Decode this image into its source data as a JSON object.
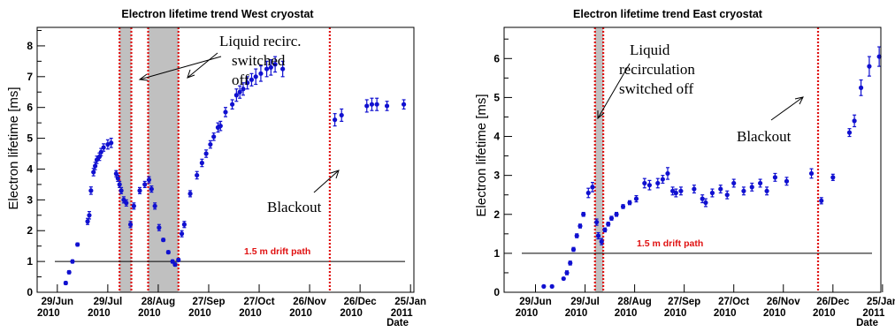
{
  "chart_data": [
    {
      "type": "scatter",
      "title": "Electron lifetime trend West cryostat",
      "ylabel": "Electron lifetime [ms]",
      "xlabel": "Date",
      "ylim": [
        0,
        8.6
      ],
      "yticks": [
        0,
        1,
        2,
        3,
        4,
        5,
        6,
        7,
        8
      ],
      "x_ticks": [
        {
          "day": 0,
          "line1": "29/Jun",
          "line2": "2010"
        },
        {
          "day": 30,
          "line1": "29/Jul",
          "line2": "2010"
        },
        {
          "day": 60,
          "line1": "28/Aug",
          "line2": "2010"
        },
        {
          "day": 90,
          "line1": "27/Sep",
          "line2": "2010"
        },
        {
          "day": 120,
          "line1": "27/Oct",
          "line2": "2010"
        },
        {
          "day": 150,
          "line1": "26/Nov",
          "line2": "2010"
        },
        {
          "day": 180,
          "line1": "26/Dec",
          "line2": "2010"
        },
        {
          "day": 210,
          "line1": "25/Jan",
          "line2": "2011"
        }
      ],
      "xlim": [
        -12,
        212
      ],
      "reference_line": {
        "y": 1.0,
        "label": "1.5 m drift path"
      },
      "shaded_regions": [
        [
          37,
          44
        ],
        [
          54,
          72
        ]
      ],
      "event_lines": [
        162
      ],
      "points": [
        {
          "x": 5,
          "y": 0.3,
          "err": 0.05
        },
        {
          "x": 7,
          "y": 0.65,
          "err": 0.05
        },
        {
          "x": 9,
          "y": 1.0,
          "err": 0.05
        },
        {
          "x": 12,
          "y": 1.55,
          "err": 0.05
        },
        {
          "x": 18,
          "y": 2.3,
          "err": 0.1
        },
        {
          "x": 19,
          "y": 2.5,
          "err": 0.12
        },
        {
          "x": 20,
          "y": 3.3,
          "err": 0.12
        },
        {
          "x": 21.5,
          "y": 3.9,
          "err": 0.12
        },
        {
          "x": 22.5,
          "y": 4.1,
          "err": 0.12
        },
        {
          "x": 23.5,
          "y": 4.3,
          "err": 0.12
        },
        {
          "x": 25,
          "y": 4.4,
          "err": 0.12
        },
        {
          "x": 26,
          "y": 4.55,
          "err": 0.12
        },
        {
          "x": 27.5,
          "y": 4.7,
          "err": 0.12
        },
        {
          "x": 30,
          "y": 4.8,
          "err": 0.15
        },
        {
          "x": 32,
          "y": 4.85,
          "err": 0.15
        },
        {
          "x": 35,
          "y": 3.85,
          "err": 0.1
        },
        {
          "x": 36,
          "y": 3.7,
          "err": 0.1
        },
        {
          "x": 37,
          "y": 3.5,
          "err": 0.1
        },
        {
          "x": 38,
          "y": 3.3,
          "err": 0.1
        },
        {
          "x": 39.5,
          "y": 3.0,
          "err": 0.1
        },
        {
          "x": 41,
          "y": 2.9,
          "err": 0.1
        },
        {
          "x": 43.5,
          "y": 2.2,
          "err": 0.1
        },
        {
          "x": 45.5,
          "y": 2.8,
          "err": 0.1
        },
        {
          "x": 49,
          "y": 3.3,
          "err": 0.1
        },
        {
          "x": 52,
          "y": 3.5,
          "err": 0.1
        },
        {
          "x": 54.5,
          "y": 3.65,
          "err": 0.1
        },
        {
          "x": 56,
          "y": 3.35,
          "err": 0.1
        },
        {
          "x": 58,
          "y": 2.8,
          "err": 0.1
        },
        {
          "x": 60.5,
          "y": 2.1,
          "err": 0.1
        },
        {
          "x": 63,
          "y": 1.7,
          "err": 0.05
        },
        {
          "x": 66,
          "y": 1.3,
          "err": 0.05
        },
        {
          "x": 68.5,
          "y": 1.0,
          "err": 0.05
        },
        {
          "x": 70,
          "y": 0.9,
          "err": 0.05
        },
        {
          "x": 72,
          "y": 1.05,
          "err": 0.05
        },
        {
          "x": 74,
          "y": 1.9,
          "err": 0.1
        },
        {
          "x": 75.5,
          "y": 2.2,
          "err": 0.1
        },
        {
          "x": 79,
          "y": 3.2,
          "err": 0.1
        },
        {
          "x": 83,
          "y": 3.8,
          "err": 0.12
        },
        {
          "x": 86,
          "y": 4.2,
          "err": 0.12
        },
        {
          "x": 88.5,
          "y": 4.5,
          "err": 0.12
        },
        {
          "x": 91,
          "y": 4.8,
          "err": 0.12
        },
        {
          "x": 93,
          "y": 5.05,
          "err": 0.12
        },
        {
          "x": 95.5,
          "y": 5.35,
          "err": 0.15
        },
        {
          "x": 97,
          "y": 5.4,
          "err": 0.15
        },
        {
          "x": 100,
          "y": 5.85,
          "err": 0.15
        },
        {
          "x": 104,
          "y": 6.1,
          "err": 0.15
        },
        {
          "x": 106.5,
          "y": 6.4,
          "err": 0.2
        },
        {
          "x": 108.5,
          "y": 6.5,
          "err": 0.2
        },
        {
          "x": 110.5,
          "y": 6.6,
          "err": 0.2
        },
        {
          "x": 113,
          "y": 6.8,
          "err": 0.2
        },
        {
          "x": 115.5,
          "y": 6.9,
          "err": 0.2
        },
        {
          "x": 118,
          "y": 7.0,
          "err": 0.25
        },
        {
          "x": 121,
          "y": 7.1,
          "err": 0.25
        },
        {
          "x": 124.5,
          "y": 7.25,
          "err": 0.25
        },
        {
          "x": 127,
          "y": 7.3,
          "err": 0.25
        },
        {
          "x": 129.5,
          "y": 7.4,
          "err": 0.25
        },
        {
          "x": 134,
          "y": 7.25,
          "err": 0.25
        },
        {
          "x": 165,
          "y": 5.6,
          "err": 0.2
        },
        {
          "x": 169,
          "y": 5.75,
          "err": 0.2
        },
        {
          "x": 184,
          "y": 6.05,
          "err": 0.2
        },
        {
          "x": 187,
          "y": 6.1,
          "err": 0.2
        },
        {
          "x": 190,
          "y": 6.1,
          "err": 0.2
        },
        {
          "x": 196,
          "y": 6.05,
          "err": 0.15
        },
        {
          "x": 206,
          "y": 6.1,
          "err": 0.15
        }
      ],
      "annotations": [
        {
          "lines": [
            "Liquid recirc.",
            "switched",
            "off"
          ]
        },
        {
          "lines": [
            "Blackout"
          ]
        }
      ]
    },
    {
      "type": "scatter",
      "title": "Electron lifetime trend East cryostat",
      "ylabel": "Electron lifetime [ms]",
      "xlabel": "Date",
      "ylim": [
        0,
        6.8
      ],
      "yticks": [
        0,
        1,
        2,
        3,
        4,
        5,
        6
      ],
      "x_ticks": [
        {
          "day": 0,
          "line1": "29/Jun",
          "line2": "2010"
        },
        {
          "day": 30,
          "line1": "29/Jul",
          "line2": "2010"
        },
        {
          "day": 60,
          "line1": "28/Aug",
          "line2": "2010"
        },
        {
          "day": 90,
          "line1": "27/Sep",
          "line2": "2010"
        },
        {
          "day": 120,
          "line1": "27/Oct",
          "line2": "2010"
        },
        {
          "day": 150,
          "line1": "26/Nov",
          "line2": "2010"
        },
        {
          "day": 180,
          "line1": "26/Dec",
          "line2": "2010"
        },
        {
          "day": 210,
          "line1": "25/Jan",
          "line2": "2011"
        }
      ],
      "xlim": [
        -19,
        209
      ],
      "reference_line": {
        "y": 1.0,
        "label": "1.5 m drift path"
      },
      "shaded_regions": [
        [
          36,
          41
        ]
      ],
      "event_lines": [
        171
      ],
      "points": [
        {
          "x": 5,
          "y": 0.15,
          "err": 0.03
        },
        {
          "x": 10,
          "y": 0.15,
          "err": 0.03
        },
        {
          "x": 17,
          "y": 0.35,
          "err": 0.03
        },
        {
          "x": 19,
          "y": 0.5,
          "err": 0.05
        },
        {
          "x": 21,
          "y": 0.75,
          "err": 0.05
        },
        {
          "x": 23,
          "y": 1.1,
          "err": 0.05
        },
        {
          "x": 25,
          "y": 1.45,
          "err": 0.05
        },
        {
          "x": 27,
          "y": 1.7,
          "err": 0.05
        },
        {
          "x": 29,
          "y": 2.0,
          "err": 0.05
        },
        {
          "x": 32,
          "y": 2.55,
          "err": 0.12
        },
        {
          "x": 34.5,
          "y": 2.7,
          "err": 0.12
        },
        {
          "x": 37,
          "y": 1.8,
          "err": 0.08
        },
        {
          "x": 38,
          "y": 1.45,
          "err": 0.08
        },
        {
          "x": 40,
          "y": 1.3,
          "err": 0.08
        },
        {
          "x": 42,
          "y": 1.6,
          "err": 0.05
        },
        {
          "x": 44,
          "y": 1.75,
          "err": 0.05
        },
        {
          "x": 46,
          "y": 1.9,
          "err": 0.05
        },
        {
          "x": 49,
          "y": 2.0,
          "err": 0.05
        },
        {
          "x": 53,
          "y": 2.2,
          "err": 0.05
        },
        {
          "x": 57,
          "y": 2.3,
          "err": 0.05
        },
        {
          "x": 61,
          "y": 2.4,
          "err": 0.08
        },
        {
          "x": 66,
          "y": 2.8,
          "err": 0.12
        },
        {
          "x": 69,
          "y": 2.75,
          "err": 0.12
        },
        {
          "x": 74,
          "y": 2.8,
          "err": 0.12
        },
        {
          "x": 77,
          "y": 2.9,
          "err": 0.1
        },
        {
          "x": 80,
          "y": 3.05,
          "err": 0.15
        },
        {
          "x": 83,
          "y": 2.6,
          "err": 0.1
        },
        {
          "x": 85,
          "y": 2.55,
          "err": 0.1
        },
        {
          "x": 88,
          "y": 2.6,
          "err": 0.1
        },
        {
          "x": 96,
          "y": 2.65,
          "err": 0.1
        },
        {
          "x": 101,
          "y": 2.4,
          "err": 0.1
        },
        {
          "x": 103,
          "y": 2.3,
          "err": 0.1
        },
        {
          "x": 107,
          "y": 2.55,
          "err": 0.1
        },
        {
          "x": 112,
          "y": 2.65,
          "err": 0.1
        },
        {
          "x": 116,
          "y": 2.5,
          "err": 0.1
        },
        {
          "x": 120,
          "y": 2.8,
          "err": 0.1
        },
        {
          "x": 126,
          "y": 2.6,
          "err": 0.1
        },
        {
          "x": 131,
          "y": 2.7,
          "err": 0.1
        },
        {
          "x": 136,
          "y": 2.8,
          "err": 0.1
        },
        {
          "x": 140,
          "y": 2.6,
          "err": 0.1
        },
        {
          "x": 145,
          "y": 2.95,
          "err": 0.1
        },
        {
          "x": 152,
          "y": 2.85,
          "err": 0.1
        },
        {
          "x": 167,
          "y": 3.05,
          "err": 0.12
        },
        {
          "x": 173,
          "y": 2.35,
          "err": 0.08
        },
        {
          "x": 180,
          "y": 2.95,
          "err": 0.08
        },
        {
          "x": 190,
          "y": 4.1,
          "err": 0.1
        },
        {
          "x": 193,
          "y": 4.4,
          "err": 0.15
        },
        {
          "x": 197,
          "y": 5.25,
          "err": 0.2
        },
        {
          "x": 202,
          "y": 5.8,
          "err": 0.25
        },
        {
          "x": 208,
          "y": 6.05,
          "err": 0.25
        }
      ],
      "annotations": [
        {
          "lines": [
            "Liquid",
            "recirculation",
            "switched off"
          ]
        },
        {
          "lines": [
            "Blackout"
          ]
        }
      ]
    }
  ]
}
